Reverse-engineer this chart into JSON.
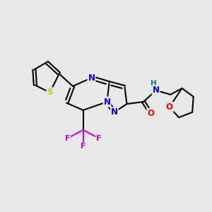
{
  "bg_color": "#e8e8e8",
  "bond_color": "#000000",
  "bond_width": 1.5,
  "atom_colors": {
    "N": "#0000ff",
    "O": "#ff0000",
    "S": "#cccc00",
    "F": "#cc00cc",
    "H": "#008080",
    "C": "#000000"
  },
  "font_size": 8.5,
  "fig_width": 3.0,
  "fig_height": 3.0,
  "dpi": 100
}
